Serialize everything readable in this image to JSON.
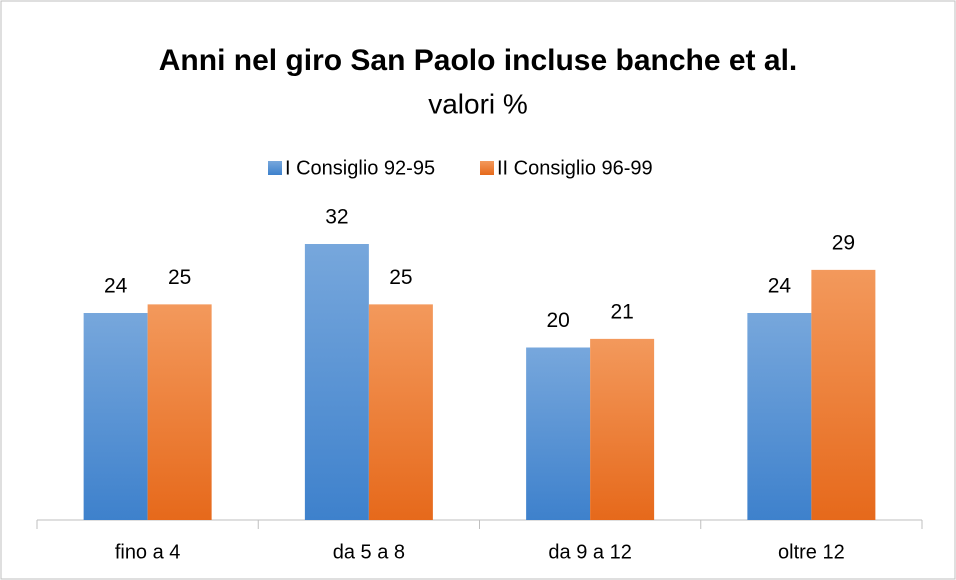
{
  "chart_data": {
    "type": "bar",
    "title": "Anni nel giro San Paolo incluse banche et al.",
    "subtitle": "valori %",
    "categories": [
      "fino a 4",
      "da 5 a 8",
      "da 9 a 12",
      "oltre 12"
    ],
    "series": [
      {
        "name": "I Consiglio  92-95",
        "color": "#5b9bd5",
        "values": [
          24,
          32,
          20,
          24
        ]
      },
      {
        "name": "II Consiglio 96-99",
        "color": "#ed7d31",
        "values": [
          25,
          25,
          21,
          29
        ]
      }
    ],
    "legend": "top"
  }
}
